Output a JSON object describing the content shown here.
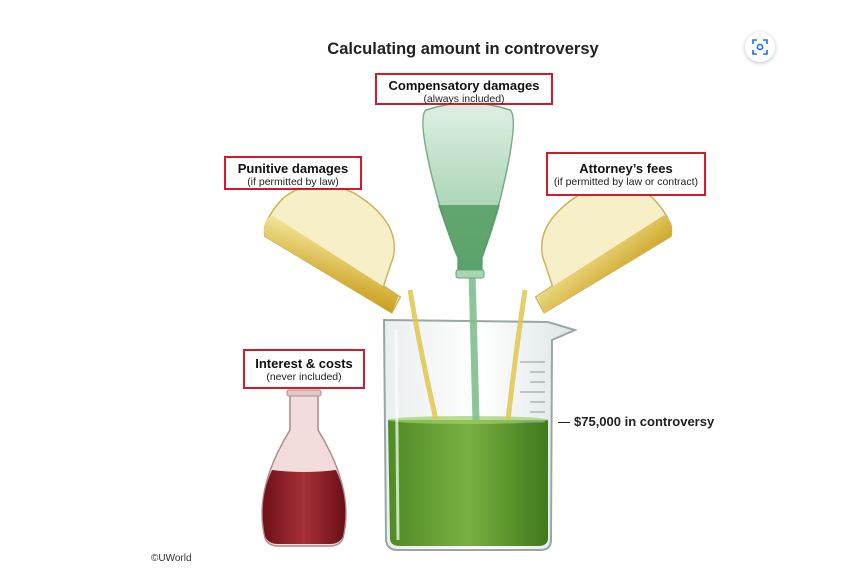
{
  "title": "Calculating amount in controversy",
  "labels": {
    "compensatory": {
      "main": "Compensatory damages",
      "sub": "(always included)"
    },
    "punitive": {
      "main": "Punitive damages",
      "sub": "(if permitted by law)"
    },
    "attorney": {
      "main": "Attorney’s fees",
      "sub": "(if permitted by law or contract)"
    },
    "interest": {
      "main": "Interest & costs",
      "sub": "(never included)"
    }
  },
  "callout": "$75,000 in controversy",
  "copyright": "©UWorld",
  "icons": {
    "scan": "visual-search-icon"
  },
  "colors": {
    "label_border": "#d11a2a",
    "green_liquid": "#5c9a2e",
    "yellow_liquid": "#d9b82c",
    "red_liquid": "#8e1d24"
  }
}
